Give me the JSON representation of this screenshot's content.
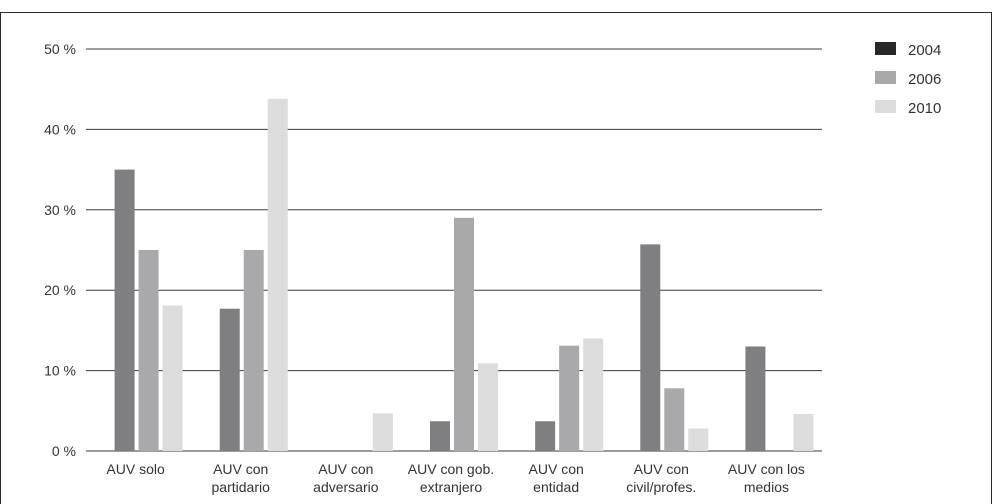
{
  "chart_data": {
    "type": "bar",
    "categories": [
      [
        "AUV solo"
      ],
      [
        "AUV con",
        "partidario"
      ],
      [
        "AUV con",
        "adversario"
      ],
      [
        "AUV con gob.",
        "extranjero"
      ],
      [
        "AUV con",
        "entidad"
      ],
      [
        "AUV con",
        "civil/profes."
      ],
      [
        "AUV con los",
        "medios"
      ]
    ],
    "series": [
      {
        "name": "2004",
        "values": [
          35,
          17.7,
          0,
          3.7,
          3.7,
          25.7,
          13
        ],
        "color": "#7f7f82"
      },
      {
        "name": "2006",
        "values": [
          25,
          25,
          0,
          29,
          13.1,
          7.8,
          0
        ],
        "color": "#a9a9ab"
      },
      {
        "name": "2010",
        "values": [
          18.1,
          43.8,
          4.7,
          10.9,
          14,
          2.8,
          4.6
        ],
        "color": "#dcdcdd"
      }
    ],
    "legend_swatch_colors": [
      "#2a2727",
      "#a9a9ab",
      "#dcdcdd"
    ],
    "yticks": [
      "0 %",
      "10 %",
      "20 %",
      "30 %",
      "40 %",
      "50 %"
    ],
    "ylim": [
      0,
      50
    ],
    "grid": true,
    "legend_position": "top-right",
    "title": "",
    "xlabel": "",
    "ylabel": ""
  }
}
